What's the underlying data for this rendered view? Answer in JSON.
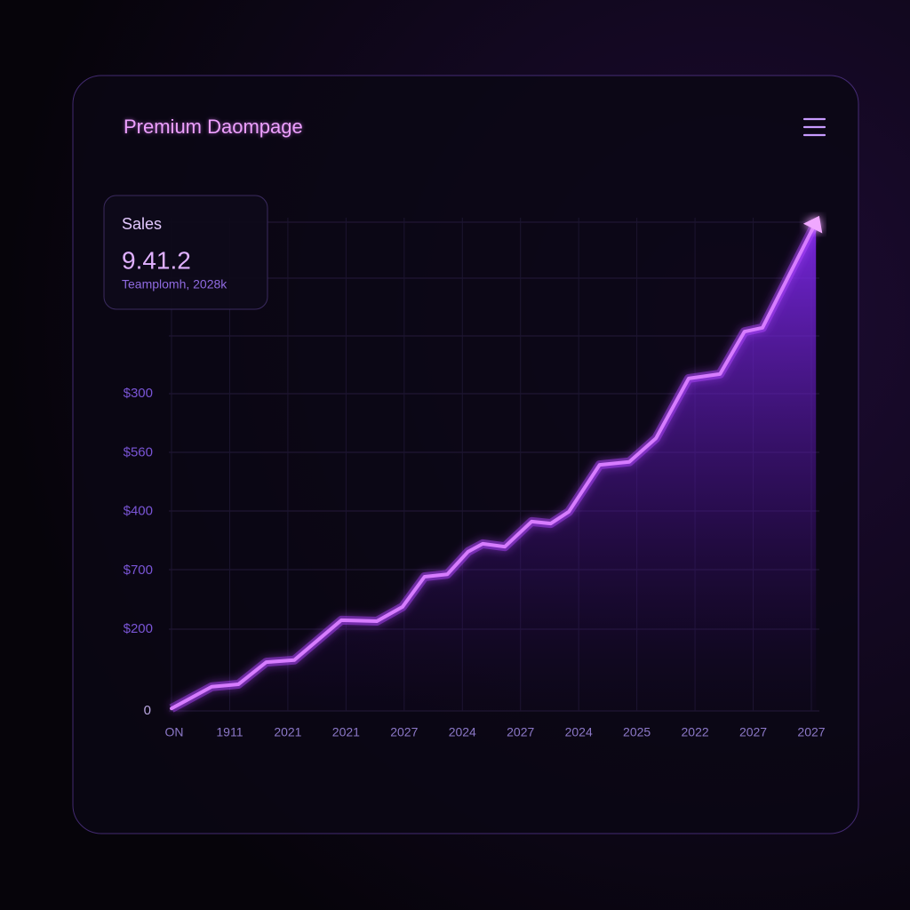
{
  "header": {
    "title": "Premium Daompage"
  },
  "stat_card": {
    "label": "Sales",
    "value": "9.41.2",
    "caption": "Teamplomh, 2028k"
  },
  "chart_data": {
    "type": "line",
    "categories": [
      "ON",
      "1911",
      "2021",
      "2021",
      "2027",
      "2024",
      "2027",
      "2024",
      "2025",
      "2022",
      "2027",
      "2027"
    ],
    "y_axis_labels": [
      "$300",
      "$560",
      "$400",
      "$700",
      "$200",
      "0"
    ],
    "x": [
      0,
      0.69,
      1.15,
      1.63,
      2.11,
      2.92,
      3.53,
      3.97,
      4.35,
      4.74,
      5.1,
      5.35,
      5.73,
      6.19,
      6.52,
      6.83,
      7.36,
      7.87,
      8.33,
      8.89,
      9.43,
      9.85,
      10.16,
      11.08
    ],
    "values": [
      0.5,
      4.9,
      5.4,
      9.9,
      10.3,
      18.4,
      18.2,
      21.1,
      27.2,
      27.7,
      32.3,
      33.9,
      33.3,
      38.4,
      38.0,
      40.4,
      49.9,
      50.5,
      55.3,
      67.4,
      68.3,
      76.9,
      77.7,
      99.1
    ],
    "ylim": [
      0,
      100
    ],
    "color": "#d77cff"
  }
}
